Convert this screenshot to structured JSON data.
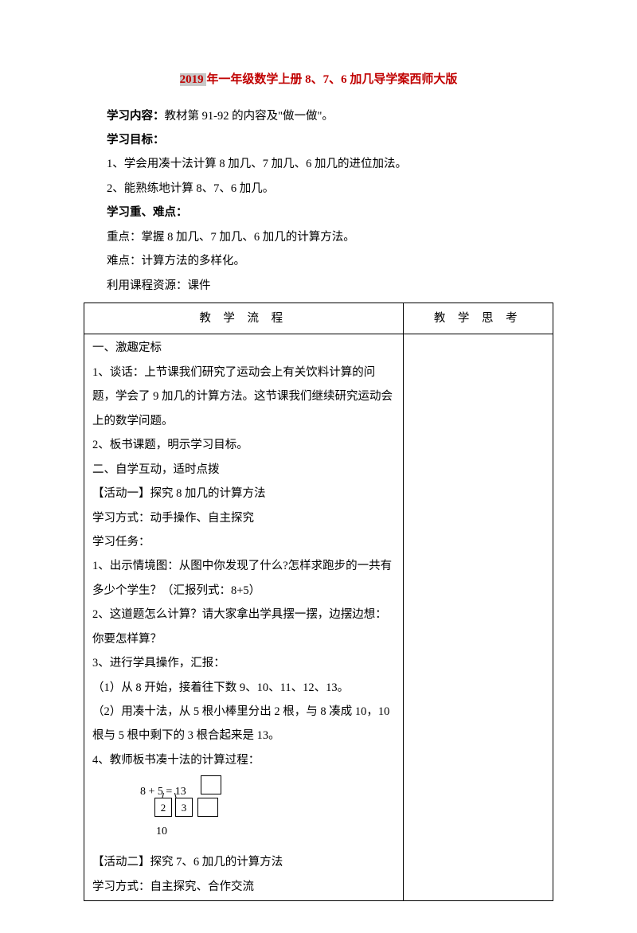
{
  "title": {
    "pre": "2019 ",
    "mid": "年一年级数学上册 8、7、6 加几导学案西师大版"
  },
  "intro": {
    "p1_label": "学习内容：",
    "p1_text": "教材第 91-92 的内容及\"做一做\"。",
    "p2_label": "学习目标：",
    "p3": "1、学会用凑十法计算 8 加几、7 加几、6 加几的进位加法。",
    "p4": "2、能熟练地计算 8、7、6 加几。",
    "p5_label": "学习重、难点：",
    "p6": "重点：掌握 8 加几、7 加几、6 加几的计算方法。",
    "p7": "难点：计算方法的多样化。",
    "p8": "利用课程资源：课件"
  },
  "table": {
    "h1": "教 学 流 程",
    "h2": "教 学 思 考"
  },
  "flow": {
    "s1": "一、激趣定标",
    "s1_1": "1、谈话：上节课我们研究了运动会上有关饮料计算的问题，学会了 9 加几的计算方法。这节课我们继续研究运动会上的数学问题。",
    "s1_2": "2、板书课题，明示学习目标。",
    "s2": "二、自学互动，适时点拨",
    "a1": "【活动一】探究 8 加几的计算方法",
    "a1_m": "学习方式：动手操作、自主探究",
    "a1_t": "学习任务：",
    "a1_1": "1、出示情境图：从图中你发现了什么?怎样求跑步的一共有多少个学生？（汇报列式：8+5）",
    "a1_2": "2、这道题怎么计算？请大家拿出学具摆一摆，边摆边想：你要怎样算？",
    "a1_3": "3、进行学具操作，汇报：",
    "a1_3a": "（1）从 8 开始，接着往下数 9、10、11、12、13。",
    "a1_3b": "（2）用凑十法，从 5 根小棒里分出 2 根，与 8 凑成 10，10 根与 5 根中剩下的 3 根合起来是 13。",
    "a1_4": "4、教师板书凑十法的计算过程：",
    "eq": "8  +  5  =  13",
    "eq_b2": "2",
    "eq_b3": "3",
    "eq_10": "10",
    "a2": "【活动二】探究 7、6 加几的计算方法",
    "a2_m": "学习方式：自主探究、合作交流"
  }
}
